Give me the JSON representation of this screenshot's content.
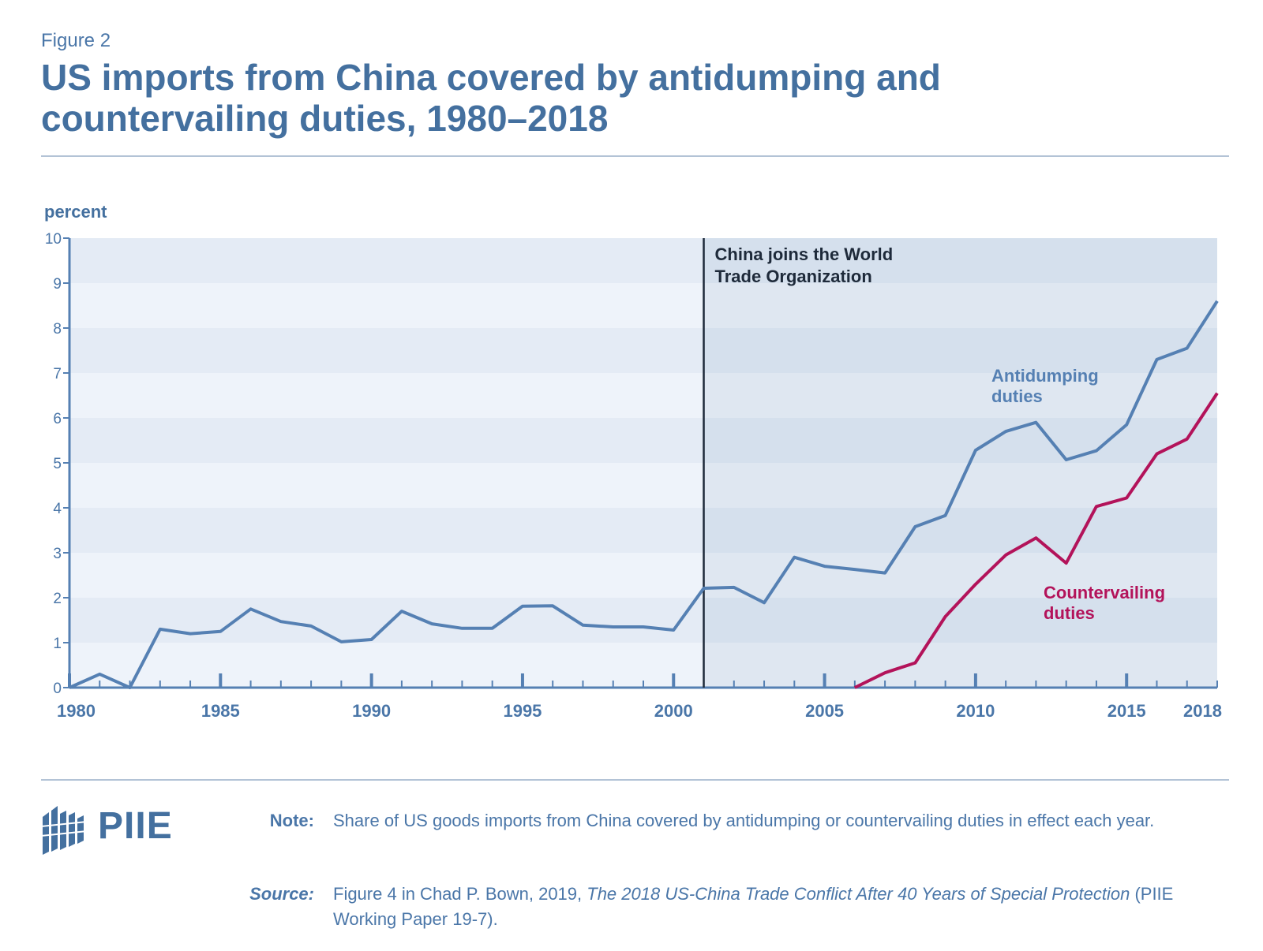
{
  "header": {
    "figure_label": "Figure 2",
    "title": "US imports from China covered by antidumping and countervailing duties, 1980–2018"
  },
  "chart_data": {
    "type": "line",
    "ylabel": "percent",
    "ylim": [
      0,
      10
    ],
    "y_ticks": [
      "0",
      "1",
      "2",
      "3",
      "4",
      "5",
      "6",
      "7",
      "8",
      "9",
      "10"
    ],
    "xlim": [
      1980,
      2018
    ],
    "x_tick_labels": [
      {
        "year": 1980,
        "label": "1980"
      },
      {
        "year": 1985,
        "label": "1985"
      },
      {
        "year": 1990,
        "label": "1990"
      },
      {
        "year": 1995,
        "label": "1995"
      },
      {
        "year": 2000,
        "label": "2000"
      },
      {
        "year": 2005,
        "label": "2005"
      },
      {
        "year": 2010,
        "label": "2010"
      },
      {
        "year": 2015,
        "label": "2015"
      },
      {
        "year": 2018,
        "label": "2018"
      }
    ],
    "grid": "alternating horizontal bands",
    "event": {
      "year": 2001,
      "label_lines": [
        "China joins the World",
        "Trade Organization"
      ]
    },
    "series": [
      {
        "name": "Antidumping duties",
        "label_lines": [
          "Antidumping",
          "duties"
        ],
        "color": "#5580b3",
        "points": [
          [
            1980,
            0.0
          ],
          [
            1981,
            0.3
          ],
          [
            1982,
            0.0
          ],
          [
            1983,
            1.3
          ],
          [
            1984,
            1.2
          ],
          [
            1985,
            1.25
          ],
          [
            1986,
            1.75
          ],
          [
            1987,
            1.47
          ],
          [
            1988,
            1.37
          ],
          [
            1989,
            1.02
          ],
          [
            1990,
            1.07
          ],
          [
            1991,
            1.7
          ],
          [
            1992,
            1.42
          ],
          [
            1993,
            1.32
          ],
          [
            1994,
            1.32
          ],
          [
            1995,
            1.81
          ],
          [
            1996,
            1.82
          ],
          [
            1997,
            1.39
          ],
          [
            1998,
            1.35
          ],
          [
            1999,
            1.35
          ],
          [
            2000,
            1.28
          ],
          [
            2001,
            2.21
          ],
          [
            2002,
            2.23
          ],
          [
            2003,
            1.89
          ],
          [
            2004,
            2.9
          ],
          [
            2005,
            2.7
          ],
          [
            2006,
            2.63
          ],
          [
            2007,
            2.55
          ],
          [
            2008,
            3.58
          ],
          [
            2009,
            3.83
          ],
          [
            2010,
            5.28
          ],
          [
            2011,
            5.7
          ],
          [
            2012,
            5.9
          ],
          [
            2013,
            5.07
          ],
          [
            2014,
            5.27
          ],
          [
            2015,
            5.85
          ],
          [
            2016,
            7.3
          ],
          [
            2017,
            7.55
          ],
          [
            2018,
            8.6
          ]
        ]
      },
      {
        "name": "Countervailing duties",
        "label_lines": [
          "Countervailing",
          "duties"
        ],
        "color": "#b3135a",
        "points": [
          [
            2006,
            0.0
          ],
          [
            2007,
            0.33
          ],
          [
            2008,
            0.55
          ],
          [
            2009,
            1.58
          ],
          [
            2010,
            2.3
          ],
          [
            2011,
            2.95
          ],
          [
            2012,
            3.33
          ],
          [
            2013,
            2.77
          ],
          [
            2014,
            4.03
          ],
          [
            2015,
            4.22
          ],
          [
            2016,
            5.2
          ],
          [
            2017,
            5.53
          ],
          [
            2018,
            6.55
          ]
        ]
      }
    ]
  },
  "footer": {
    "logo_text": "PIIE",
    "note_label": "Note:",
    "note_text": "Share of US goods imports from China covered by antidumping or countervailing duties in effect each year.",
    "source_label": "Source:",
    "source_prefix": "Figure 4 in Chad P. Bown, 2019, ",
    "source_title": "The 2018 US-China Trade Conflict After 40 Years of Special Protection",
    "source_suffix": " (PIIE Working Paper 19-7)."
  }
}
